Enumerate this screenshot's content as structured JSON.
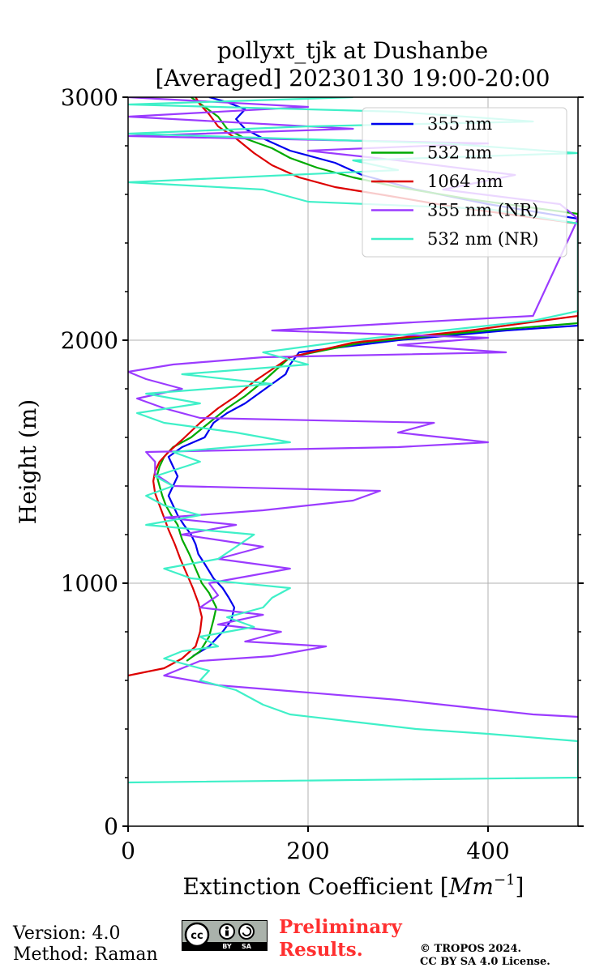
{
  "chart_data": {
    "type": "line",
    "title_line1": "pollyxt_tjk at Dushanbe",
    "title_line2": "[Averaged] 20230130 19:00-20:00",
    "xlabel": "Extinction Coefficient [",
    "xlabel_unit": "Mm",
    "xlabel_exp": "−1",
    "xlabel_close": "]",
    "ylabel": "Height (m)",
    "xlim": [
      0,
      500
    ],
    "ylim": [
      0,
      3000
    ],
    "x_ticks": [
      0,
      200,
      400
    ],
    "x_tick_labels": [
      "0",
      "200",
      "400"
    ],
    "y_ticks": [
      0,
      1000,
      2000,
      3000
    ],
    "y_tick_labels": [
      "0",
      "1000",
      "2000",
      "3000"
    ],
    "grid": true,
    "legend_position": "top-right",
    "series": [
      {
        "name": "355 nm",
        "color": "#0000ee",
        "points": [
          [
            72,
            700
          ],
          [
            90,
            740
          ],
          [
            105,
            800
          ],
          [
            115,
            850
          ],
          [
            118,
            900
          ],
          [
            112,
            940
          ],
          [
            105,
            980
          ],
          [
            95,
            1020
          ],
          [
            85,
            1080
          ],
          [
            78,
            1120
          ],
          [
            75,
            1160
          ],
          [
            70,
            1200
          ],
          [
            62,
            1240
          ],
          [
            55,
            1280
          ],
          [
            50,
            1320
          ],
          [
            45,
            1360
          ],
          [
            50,
            1400
          ],
          [
            55,
            1440
          ],
          [
            50,
            1480
          ],
          [
            45,
            1520
          ],
          [
            60,
            1560
          ],
          [
            85,
            1600
          ],
          [
            95,
            1660
          ],
          [
            110,
            1700
          ],
          [
            130,
            1740
          ],
          [
            145,
            1780
          ],
          [
            160,
            1820
          ],
          [
            175,
            1860
          ],
          [
            180,
            1900
          ],
          [
            190,
            1950
          ],
          [
            300,
            2000
          ],
          [
            420,
            2040
          ],
          [
            500,
            2060
          ],
          [
            500,
            2500
          ],
          [
            400,
            2560
          ],
          [
            320,
            2620
          ],
          [
            260,
            2680
          ],
          [
            230,
            2730
          ],
          [
            180,
            2780
          ],
          [
            150,
            2830
          ],
          [
            130,
            2870
          ],
          [
            120,
            2910
          ],
          [
            130,
            2950
          ],
          [
            110,
            2980
          ],
          [
            90,
            3000
          ]
        ]
      },
      {
        "name": "532 nm",
        "color": "#00aa00",
        "points": [
          [
            65,
            680
          ],
          [
            80,
            720
          ],
          [
            90,
            780
          ],
          [
            95,
            850
          ],
          [
            98,
            900
          ],
          [
            90,
            960
          ],
          [
            82,
            1000
          ],
          [
            75,
            1060
          ],
          [
            68,
            1120
          ],
          [
            60,
            1180
          ],
          [
            55,
            1240
          ],
          [
            48,
            1280
          ],
          [
            42,
            1320
          ],
          [
            38,
            1360
          ],
          [
            35,
            1400
          ],
          [
            32,
            1440
          ],
          [
            35,
            1480
          ],
          [
            40,
            1520
          ],
          [
            50,
            1560
          ],
          [
            70,
            1600
          ],
          [
            90,
            1660
          ],
          [
            110,
            1720
          ],
          [
            130,
            1770
          ],
          [
            150,
            1830
          ],
          [
            165,
            1880
          ],
          [
            180,
            1930
          ],
          [
            260,
            1990
          ],
          [
            400,
            2040
          ],
          [
            500,
            2070
          ],
          [
            500,
            2520
          ],
          [
            380,
            2580
          ],
          [
            300,
            2630
          ],
          [
            250,
            2670
          ],
          [
            210,
            2710
          ],
          [
            180,
            2750
          ],
          [
            160,
            2790
          ],
          [
            130,
            2830
          ],
          [
            110,
            2870
          ],
          [
            100,
            2920
          ],
          [
            85,
            2960
          ],
          [
            70,
            3000
          ]
        ]
      },
      {
        "name": "1064 nm",
        "color": "#dd0000",
        "points": [
          [
            0,
            620
          ],
          [
            40,
            650
          ],
          [
            60,
            690
          ],
          [
            75,
            740
          ],
          [
            80,
            800
          ],
          [
            82,
            860
          ],
          [
            78,
            920
          ],
          [
            72,
            980
          ],
          [
            65,
            1040
          ],
          [
            58,
            1100
          ],
          [
            52,
            1160
          ],
          [
            45,
            1220
          ],
          [
            40,
            1270
          ],
          [
            35,
            1320
          ],
          [
            30,
            1370
          ],
          [
            28,
            1420
          ],
          [
            30,
            1460
          ],
          [
            35,
            1500
          ],
          [
            45,
            1540
          ],
          [
            60,
            1590
          ],
          [
            80,
            1660
          ],
          [
            100,
            1720
          ],
          [
            120,
            1770
          ],
          [
            140,
            1830
          ],
          [
            160,
            1880
          ],
          [
            180,
            1930
          ],
          [
            250,
            1990
          ],
          [
            380,
            2040
          ],
          [
            500,
            2100
          ],
          [
            500,
            2480
          ],
          [
            360,
            2550
          ],
          [
            280,
            2600
          ],
          [
            230,
            2630
          ],
          [
            190,
            2670
          ],
          [
            160,
            2720
          ],
          [
            140,
            2770
          ],
          [
            120,
            2830
          ],
          [
            100,
            2880
          ],
          [
            90,
            2930
          ],
          [
            80,
            2970
          ],
          [
            75,
            3000
          ]
        ]
      },
      {
        "name": "355 nm (NR)",
        "color": "#9b3bff",
        "points": [
          [
            500,
            450
          ],
          [
            450,
            460
          ],
          [
            400,
            480
          ],
          [
            300,
            520
          ],
          [
            200,
            550
          ],
          [
            100,
            580
          ],
          [
            40,
            620
          ],
          [
            60,
            650
          ],
          [
            80,
            680
          ],
          [
            160,
            700
          ],
          [
            220,
            740
          ],
          [
            130,
            760
          ],
          [
            170,
            800
          ],
          [
            100,
            830
          ],
          [
            150,
            870
          ],
          [
            80,
            900
          ],
          [
            100,
            950
          ],
          [
            90,
            1000
          ],
          [
            180,
            1060
          ],
          [
            100,
            1100
          ],
          [
            150,
            1150
          ],
          [
            60,
            1200
          ],
          [
            120,
            1240
          ],
          [
            40,
            1270
          ],
          [
            150,
            1300
          ],
          [
            250,
            1340
          ],
          [
            280,
            1380
          ],
          [
            50,
            1400
          ],
          [
            30,
            1450
          ],
          [
            30,
            1500
          ],
          [
            20,
            1540
          ],
          [
            300,
            1560
          ],
          [
            400,
            1580
          ],
          [
            300,
            1620
          ],
          [
            340,
            1660
          ],
          [
            80,
            1680
          ],
          [
            40,
            1720
          ],
          [
            10,
            1760
          ],
          [
            60,
            1800
          ],
          [
            20,
            1840
          ],
          [
            0,
            1870
          ],
          [
            50,
            1900
          ],
          [
            150,
            1930
          ],
          [
            420,
            1950
          ],
          [
            300,
            1980
          ],
          [
            400,
            2010
          ],
          [
            160,
            2040
          ],
          [
            300,
            2070
          ],
          [
            450,
            2100
          ],
          [
            500,
            2500
          ],
          [
            480,
            2560
          ],
          [
            350,
            2620
          ],
          [
            430,
            2680
          ],
          [
            300,
            2740
          ],
          [
            200,
            2780
          ],
          [
            400,
            2810
          ],
          [
            0,
            2840
          ],
          [
            250,
            2870
          ],
          [
            0,
            2920
          ],
          [
            200,
            2960
          ],
          [
            0,
            3000
          ]
        ]
      },
      {
        "name": "532 nm (NR)",
        "color": "#3ff0c8",
        "points": [
          [
            0,
            180
          ],
          [
            500,
            200
          ],
          [
            500,
            350
          ],
          [
            400,
            380
          ],
          [
            320,
            400
          ],
          [
            250,
            430
          ],
          [
            180,
            460
          ],
          [
            150,
            500
          ],
          [
            120,
            560
          ],
          [
            80,
            600
          ],
          [
            90,
            640
          ],
          [
            40,
            690
          ],
          [
            60,
            720
          ],
          [
            100,
            740
          ],
          [
            80,
            780
          ],
          [
            140,
            820
          ],
          [
            110,
            860
          ],
          [
            150,
            900
          ],
          [
            160,
            940
          ],
          [
            180,
            980
          ],
          [
            70,
            1020
          ],
          [
            40,
            1060
          ],
          [
            100,
            1100
          ],
          [
            120,
            1150
          ],
          [
            140,
            1200
          ],
          [
            20,
            1240
          ],
          [
            80,
            1280
          ],
          [
            40,
            1320
          ],
          [
            20,
            1360
          ],
          [
            50,
            1400
          ],
          [
            30,
            1440
          ],
          [
            80,
            1500
          ],
          [
            50,
            1540
          ],
          [
            180,
            1580
          ],
          [
            120,
            1620
          ],
          [
            40,
            1660
          ],
          [
            10,
            1700
          ],
          [
            80,
            1740
          ],
          [
            20,
            1780
          ],
          [
            160,
            1820
          ],
          [
            60,
            1860
          ],
          [
            200,
            1900
          ],
          [
            150,
            1950
          ],
          [
            250,
            2000
          ],
          [
            350,
            2040
          ],
          [
            450,
            2080
          ],
          [
            500,
            2120
          ],
          [
            500,
            2480
          ],
          [
            400,
            2540
          ],
          [
            200,
            2570
          ],
          [
            150,
            2620
          ],
          [
            0,
            2650
          ],
          [
            300,
            2700
          ],
          [
            250,
            2740
          ],
          [
            500,
            2770
          ],
          [
            350,
            2810
          ],
          [
            0,
            2850
          ],
          [
            200,
            2880
          ],
          [
            450,
            2900
          ],
          [
            300,
            2940
          ],
          [
            0,
            2970
          ],
          [
            250,
            3000
          ]
        ]
      }
    ]
  },
  "footer": {
    "version": "Version: 4.0",
    "method": "Method: Raman",
    "preliminary_line1": "Preliminary",
    "preliminary_line2": "Results.",
    "copyright_line1": "© TROPOS 2024.",
    "copyright_line2": "CC BY SA 4.0 License.",
    "cc_text": "cc",
    "cc_by": "BY",
    "cc_sa": "SA"
  }
}
